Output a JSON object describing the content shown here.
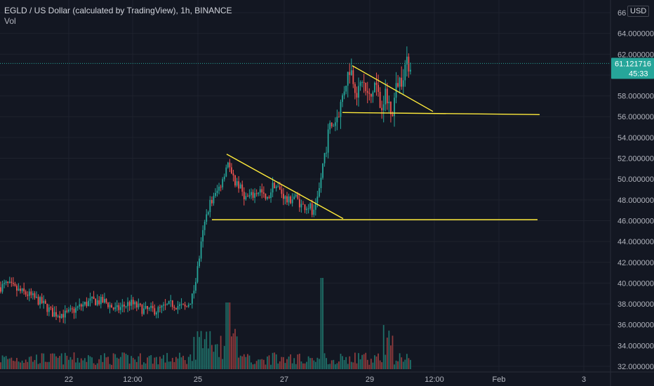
{
  "legend": {
    "title": "EGLD / US Dollar (calculated by TradingView), 1h, BINANCE",
    "volume_label": "Vol"
  },
  "currency_label": "USD",
  "price_label": "61.121716",
  "countdown_label": "45:33",
  "colors": {
    "background": "#131722",
    "up": "#26a69a",
    "down": "#ef5350",
    "up_volume": "#1f6f68",
    "down_volume": "#8e3a3c",
    "trendline": "#ffeb3b",
    "price_line": "#26a69a",
    "grid": "#1e222d"
  },
  "chart_data": {
    "type": "candlestick",
    "y_ticks": [
      "66",
      "64.000000",
      "62.000000",
      "60.000000",
      "58.000000",
      "56.000000",
      "54.000000",
      "52.000000",
      "50.000000",
      "48.000000",
      "46.000000",
      "44.000000",
      "42.000000",
      "40.000000",
      "38.000000",
      "36.000000",
      "34.000000",
      "32.000000"
    ],
    "x_ticks": [
      "22",
      "12:00",
      "25",
      "27",
      "29",
      "12:00",
      "Feb",
      "3"
    ],
    "ylim": [
      32,
      66
    ],
    "last_price": 61.121716,
    "anchors": [
      [
        0,
        39.6
      ],
      [
        10,
        39.9
      ],
      [
        25,
        39.3
      ],
      [
        40,
        38.9
      ],
      [
        60,
        38.1
      ],
      [
        75,
        37.1
      ],
      [
        95,
        37.0
      ],
      [
        110,
        37.6
      ],
      [
        130,
        38.3
      ],
      [
        150,
        38.2
      ],
      [
        165,
        37.4
      ],
      [
        185,
        38.1
      ],
      [
        205,
        37.4
      ],
      [
        225,
        37.4
      ],
      [
        245,
        38.0
      ],
      [
        265,
        37.6
      ],
      [
        275,
        38.8
      ],
      [
        282,
        41.6
      ],
      [
        290,
        45.2
      ],
      [
        298,
        47.6
      ],
      [
        305,
        48.2
      ],
      [
        315,
        49.6
      ],
      [
        325,
        51.8
      ],
      [
        330,
        50.2
      ],
      [
        340,
        49.4
      ],
      [
        350,
        48.2
      ],
      [
        360,
        48.4
      ],
      [
        370,
        49.0
      ],
      [
        380,
        47.8
      ],
      [
        390,
        49.6
      ],
      [
        400,
        48.8
      ],
      [
        410,
        47.8
      ],
      [
        420,
        48.4
      ],
      [
        430,
        47.4
      ],
      [
        440,
        47.4
      ],
      [
        447,
        46.4
      ],
      [
        452,
        47.4
      ],
      [
        458,
        50.5
      ],
      [
        463,
        52.6
      ],
      [
        470,
        55.0
      ],
      [
        478,
        55.6
      ],
      [
        485,
        57.0
      ],
      [
        492,
        59.2
      ],
      [
        499,
        60.8
      ],
      [
        504,
        59.5
      ],
      [
        510,
        58.0
      ],
      [
        516,
        59.7
      ],
      [
        522,
        58.2
      ],
      [
        528,
        57.6
      ],
      [
        535,
        59.5
      ],
      [
        542,
        56.9
      ],
      [
        548,
        58.2
      ],
      [
        553,
        57.3
      ],
      [
        560,
        56.8
      ],
      [
        566,
        59.3
      ],
      [
        572,
        59.6
      ],
      [
        578,
        61.0
      ],
      [
        585,
        61.1
      ]
    ],
    "trendlines": [
      {
        "start": [
          323,
          52.4
        ],
        "end": [
          489,
          46.2
        ]
      },
      {
        "start": [
          302,
          46.1
        ],
        "end": [
          766,
          46.1
        ]
      },
      {
        "start": [
          502,
          60.9
        ],
        "end": [
          617,
          56.5
        ]
      },
      {
        "start": [
          488,
          56.4
        ],
        "end": [
          769,
          56.2
        ]
      }
    ]
  }
}
